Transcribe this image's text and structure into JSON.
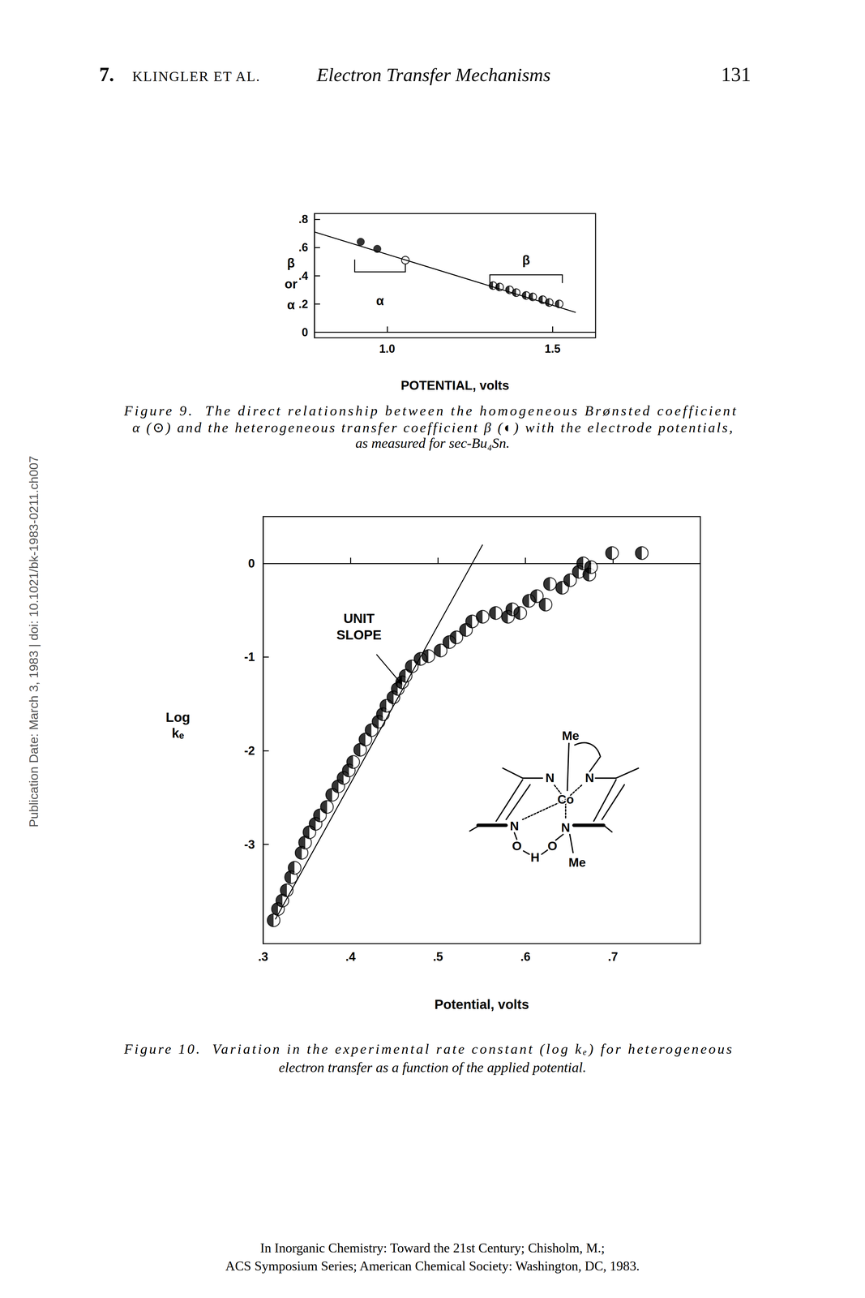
{
  "header": {
    "chapter": "7.",
    "authors": "KLINGLER ET AL.",
    "title": "Electron Transfer Mechanisms",
    "page": "131"
  },
  "chart_data": [
    {
      "type": "scatter",
      "xlabel": "POTENTIAL, volts",
      "ylabel": "β or α",
      "xlim": [
        0.78,
        1.63
      ],
      "ylim": [
        -0.04,
        0.84
      ],
      "xticks": [
        {
          "value": 1.0,
          "label": "1.0"
        },
        {
          "value": 1.5,
          "label": "1.5"
        }
      ],
      "yticks": [
        0,
        {
          "value": 0.2,
          "label": ".2"
        },
        {
          "value": 0.4,
          "label": ".4"
        },
        {
          "value": 0.6,
          "label": ".6"
        },
        {
          "value": 0.8,
          "label": ".8"
        }
      ],
      "grid": false,
      "series": [
        {
          "type": "line",
          "color": "#000000",
          "line_style": "solid",
          "x": [
            0.78,
            1.57
          ],
          "values": [
            0.71,
            0.14
          ]
        },
        {
          "color": "#000000",
          "marker": "filled",
          "x": [
            0.92,
            0.97
          ],
          "values": [
            0.64,
            0.59
          ]
        },
        {
          "name": "α",
          "color": "#000000",
          "marker": "open",
          "x": [
            1.055
          ],
          "values": [
            0.51
          ]
        },
        {
          "name": "β",
          "color": "#000000",
          "marker": "half",
          "x": [
            1.32,
            1.34,
            1.37,
            1.39,
            1.42,
            1.44,
            1.47,
            1.49,
            1.52
          ],
          "values": [
            0.33,
            0.32,
            0.3,
            0.28,
            0.26,
            0.25,
            0.23,
            0.21,
            0.2
          ]
        }
      ],
      "caption": [
        "Figure 9.  The direct relationship between the homogeneous Brønsted coefficient",
        "α (⊙) and the heterogeneous transfer coefficient β (◐) with the electrode potentials,",
        "as measured for sec-Bu₄Sn."
      ]
    },
    {
      "type": "scatter",
      "xlabel": "Potential, volts",
      "ylabel": "Log kₑ",
      "xlim": [
        0.3,
        0.8
      ],
      "ylim": [
        -4.06,
        0.5
      ],
      "xticks": [
        {
          "value": 0.3,
          "label": ".3"
        },
        {
          "value": 0.4,
          "label": ".4"
        },
        {
          "value": 0.5,
          "label": ".5"
        },
        {
          "value": 0.6,
          "label": ".6"
        },
        {
          "value": 0.7,
          "label": ".7"
        }
      ],
      "yticks": [
        -3,
        -2,
        -1,
        0
      ],
      "grid": false,
      "series": [
        {
          "name": "UNIT SLOPE",
          "type": "line",
          "color": "#000000",
          "line_style": "solid",
          "x": [
            0.314,
            0.551
          ],
          "values": [
            -3.8,
            0.2
          ]
        },
        {
          "color": "#000000",
          "marker": "half",
          "x": [
            0.312,
            0.317,
            0.322,
            0.327,
            0.332,
            0.336,
            0.344,
            0.348,
            0.353,
            0.36,
            0.365,
            0.373,
            0.379,
            0.386,
            0.392,
            0.398,
            0.403,
            0.411,
            0.417,
            0.424,
            0.432,
            0.437,
            0.441,
            0.449,
            0.454,
            0.459,
            0.463,
            0.47,
            0.48,
            0.489,
            0.503,
            0.513,
            0.521,
            0.532,
            0.539,
            0.551,
            0.566,
            0.58,
            0.585,
            0.594,
            0.604,
            0.613,
            0.623,
            0.628,
            0.642,
            0.651,
            0.661,
            0.666,
            0.673,
            0.675,
            0.699,
            0.733
          ],
          "values": [
            -3.81,
            -3.69,
            -3.6,
            -3.49,
            -3.35,
            -3.25,
            -3.09,
            -2.98,
            -2.87,
            -2.78,
            -2.69,
            -2.6,
            -2.47,
            -2.38,
            -2.29,
            -2.21,
            -2.12,
            -1.99,
            -1.88,
            -1.78,
            -1.69,
            -1.61,
            -1.52,
            -1.43,
            -1.34,
            -1.27,
            -1.2,
            -1.1,
            -1.02,
            -0.99,
            -0.93,
            -0.84,
            -0.79,
            -0.71,
            -0.62,
            -0.57,
            -0.53,
            -0.57,
            -0.49,
            -0.53,
            -0.4,
            -0.35,
            -0.44,
            -0.22,
            -0.26,
            -0.18,
            -0.09,
            0.0,
            -0.12,
            -0.04,
            0.11,
            0.11
          ]
        }
      ],
      "caption": [
        "Figure 10.  Variation in the experimental rate constant (log kₑ) for heterogeneous",
        "electron transfer as a function of the applied potential."
      ]
    }
  ],
  "structure": {
    "labels": [
      "Me",
      "N",
      "N",
      "Co",
      "N",
      "N",
      "O",
      "H",
      "O",
      "Me"
    ]
  },
  "side_text": "Publication Date: March 3, 1983 | doi: 10.1021/bk-1983-0211.ch007",
  "footer": [
    "In Inorganic Chemistry: Toward the 21st Century; Chisholm, M.;",
    "ACS Symposium Series; American Chemical Society: Washington, DC, 1983."
  ]
}
